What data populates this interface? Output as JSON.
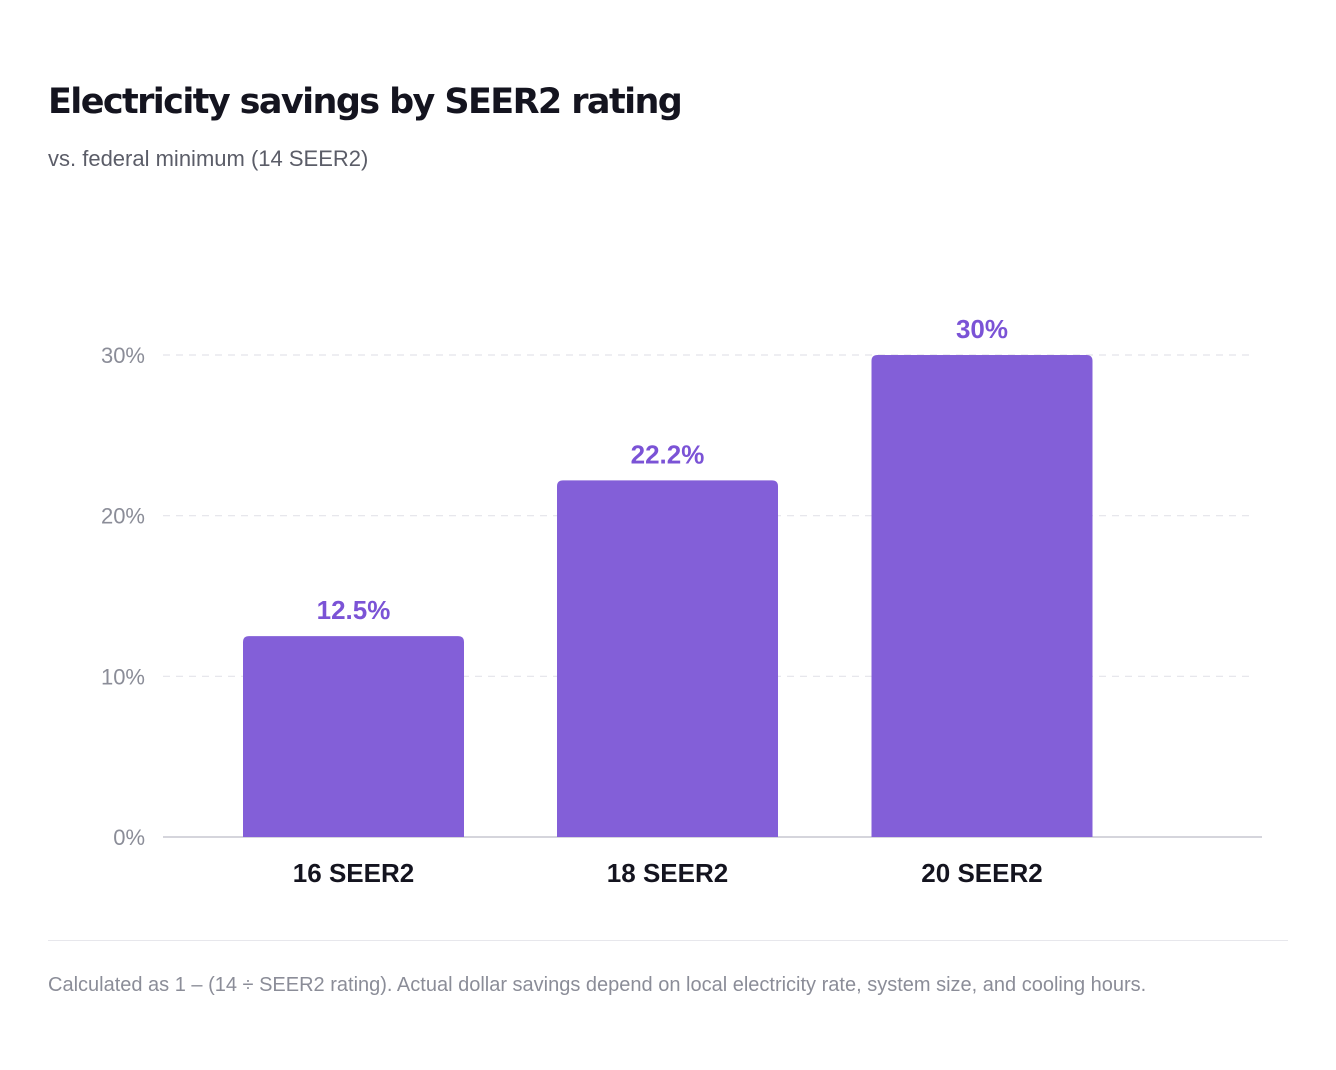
{
  "header": {
    "title": "Electricity savings by SEER2 rating",
    "subtitle": "vs. federal minimum (14 SEER2)"
  },
  "footer": {
    "note": "Calculated as 1 – (14 ÷ SEER2 rating). Actual dollar savings depend on local electricity rate, system size, and cooling hours."
  },
  "colors": {
    "bar": "#835fd8",
    "value_label": "#7b53d6",
    "axis_text": "#8b8d98",
    "category_text": "#14141f",
    "grid": "#e4e4ea",
    "baseline": "#d5d5dc"
  },
  "chart_data": {
    "type": "bar",
    "title": "Electricity savings by SEER2 rating",
    "subtitle": "vs. federal minimum (14 SEER2)",
    "categories": [
      "16 SEER2",
      "18 SEER2",
      "20 SEER2"
    ],
    "values": [
      12.5,
      22.2,
      30
    ],
    "data_labels": [
      "12.5%",
      "22.2%",
      "30%"
    ],
    "unit": "%",
    "ylim": [
      0,
      30
    ],
    "yticks": [
      0,
      10,
      20,
      30
    ],
    "ytick_labels": [
      "0%",
      "10%",
      "20%",
      "30%"
    ],
    "grid": true,
    "legend": "none"
  }
}
